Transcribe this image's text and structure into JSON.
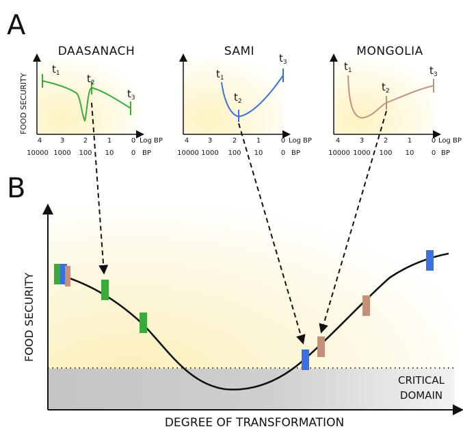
{
  "panel_a": {
    "letter": "A",
    "y_label": "FOOD SECURITY",
    "log_label": "Log BP",
    "bp_label": "BP",
    "log_ticks": [
      "4",
      "3",
      "2",
      "1",
      "0"
    ],
    "bp_ticks": [
      "10000",
      "1000",
      "100",
      "10",
      "0"
    ],
    "time_label": "t",
    "time_subscripts": [
      "1",
      "2",
      "3"
    ],
    "regions": [
      {
        "name": "DAASANACH",
        "color": "#3aab3a"
      },
      {
        "name": "SAMI",
        "color": "#3a6fe0"
      },
      {
        "name": "MONGOLIA",
        "color": "#c4907a"
      }
    ]
  },
  "panel_b": {
    "letter": "B",
    "y_label": "FOOD SECURITY",
    "x_label": "DEGREE OF TRANSFORMATION",
    "critical_line1": "CRITICAL",
    "critical_line2": "DOMAIN",
    "critical_fill": "#c8c8c8"
  }
}
